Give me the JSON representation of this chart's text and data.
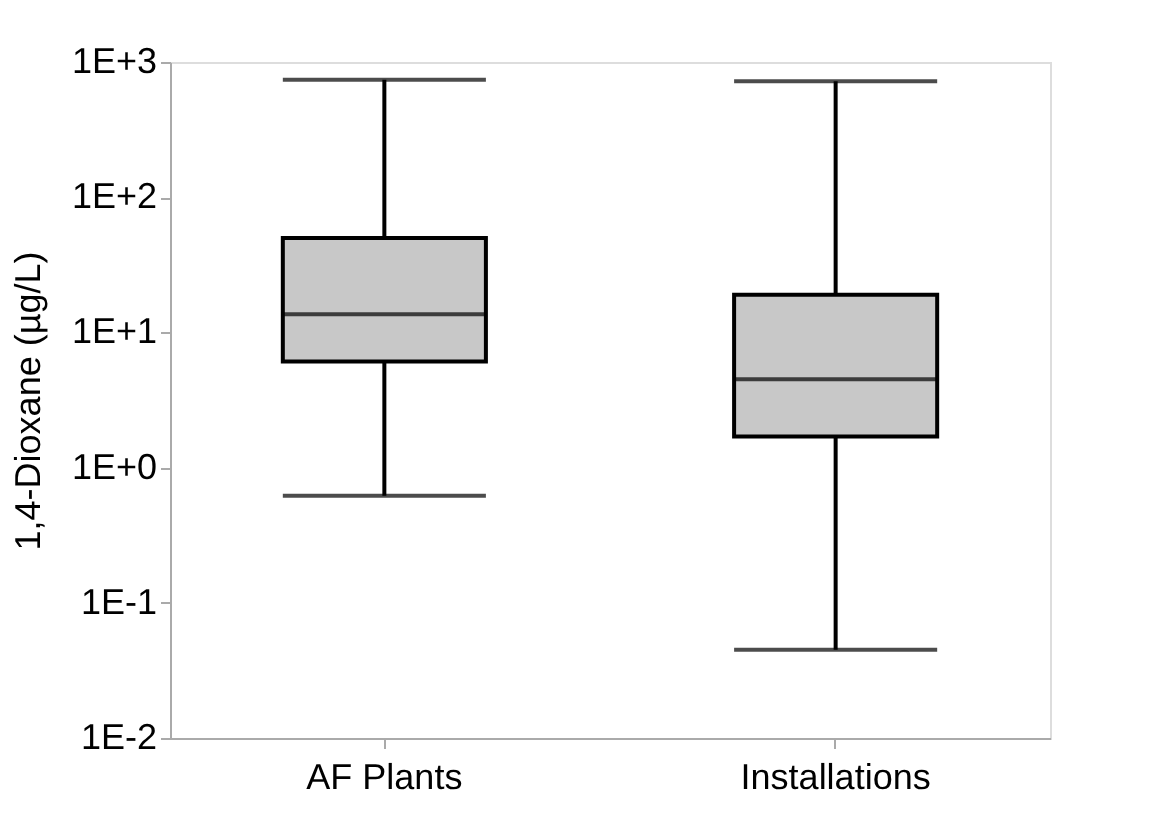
{
  "chart_data": {
    "type": "box",
    "ylabel": "1,4-Dioxane (µg/L)",
    "categories": [
      "AF Plants",
      "Installations"
    ],
    "boxes": [
      {
        "low": 0.62,
        "q1": 6.1,
        "median": 13.6,
        "q3": 50,
        "high": 740
      },
      {
        "low": 0.045,
        "q1": 1.7,
        "median": 4.5,
        "q3": 19,
        "high": 720
      }
    ],
    "log": true,
    "ylim": [
      0.01,
      1000
    ],
    "yticks": [
      {
        "value": 0.01,
        "label": "1E-2"
      },
      {
        "value": 0.1,
        "label": "1E-1"
      },
      {
        "value": 1,
        "label": "1E+0"
      },
      {
        "value": 10,
        "label": "1E+1"
      },
      {
        "value": 100,
        "label": "1E+2"
      },
      {
        "value": 1000,
        "label": "1E+3"
      }
    ],
    "color": "#c8c8c8",
    "grid": false
  }
}
